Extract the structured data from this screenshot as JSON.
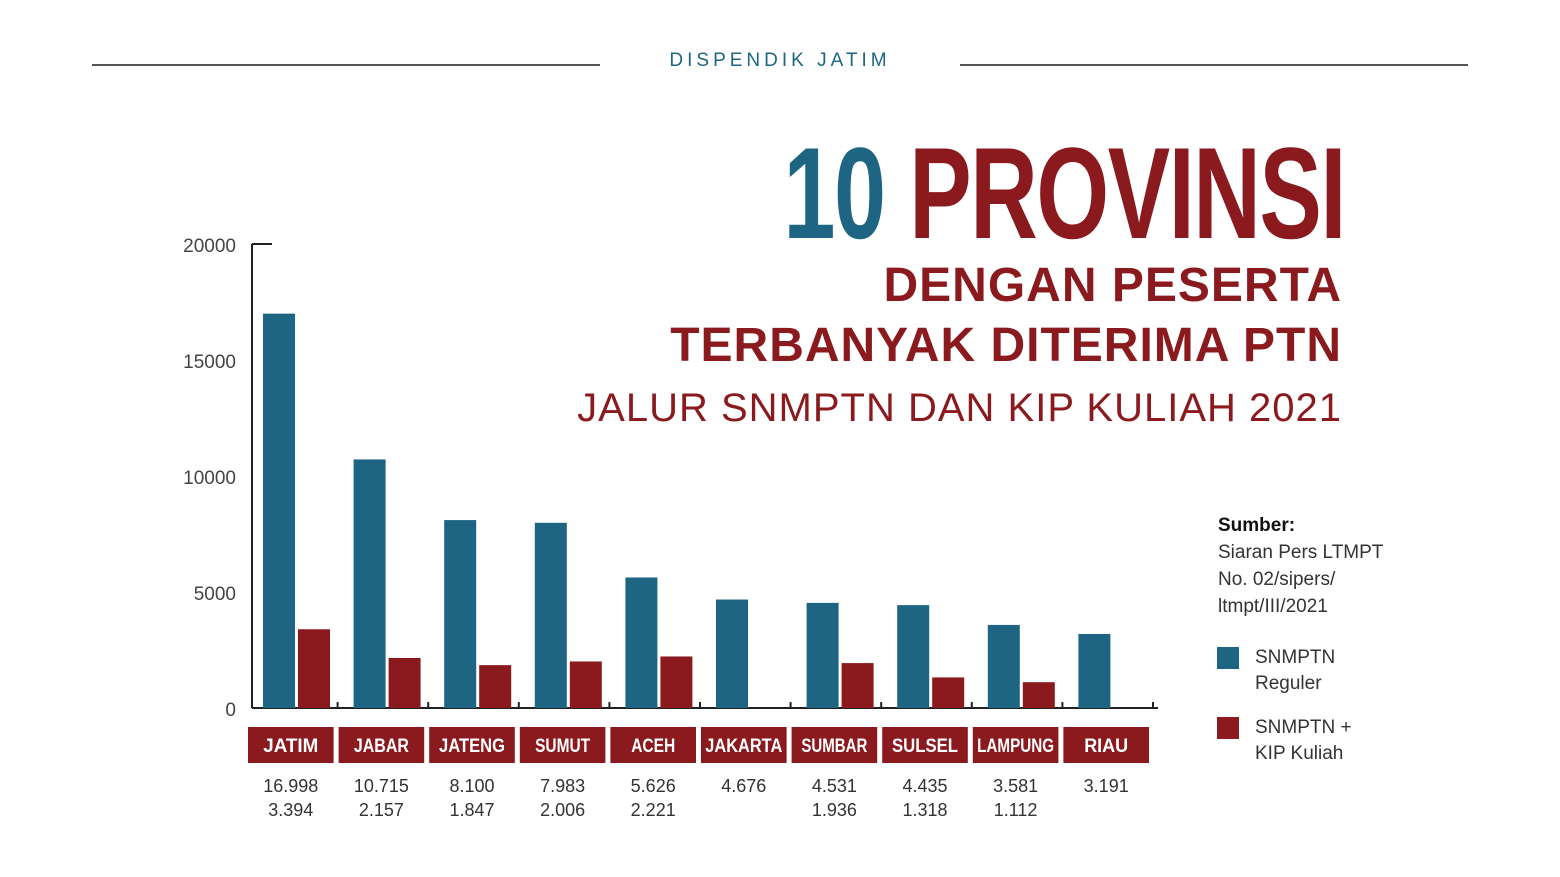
{
  "header": {
    "brand": "DISPENDIK JATIM"
  },
  "title": {
    "number": "10",
    "word": "PROVINSI",
    "line2": "DENGAN PESERTA",
    "line3": "TERBANYAK DITERIMA PTN",
    "line4": "JALUR SNMPTN DAN KIP KULIAH 2021"
  },
  "source": {
    "label": "Sumber:",
    "lines": [
      "Siaran Pers LTMPT",
      "No. 02/sipers/",
      "ltmpt/III/2021"
    ]
  },
  "colors": {
    "blue": "#1d6582",
    "red": "#8a1a1e"
  },
  "chart_data": {
    "type": "bar",
    "title": "10 PROVINSI DENGAN PESERTA TERBANYAK DITERIMA PTN JALUR SNMPTN DAN KIP KULIAH 2021",
    "categories": [
      "JATIM",
      "JABAR",
      "JATENG",
      "SUMUT",
      "ACEH",
      "JAKARTA",
      "SUMBAR",
      "SULSEL",
      "LAMPUNG",
      "RIAU"
    ],
    "series": [
      {
        "name": "SNMPTN Reguler",
        "color": "#1d6582",
        "values": [
          16998,
          10715,
          8100,
          7983,
          5626,
          4676,
          4531,
          4435,
          3581,
          3191
        ],
        "labels": [
          "16.998",
          "10.715",
          "8.100",
          "7.983",
          "5.626",
          "4.676",
          "4.531",
          "4.435",
          "3.581",
          "3.191"
        ]
      },
      {
        "name": "SNMPTN + KIP Kuliah",
        "color": "#8a1a1e",
        "values": [
          3394,
          2157,
          1847,
          2006,
          2221,
          null,
          1936,
          1318,
          1112,
          null
        ],
        "labels": [
          "3.394",
          "2.157",
          "1.847",
          "2.006",
          "2.221",
          "",
          "1.936",
          "1.318",
          "1.112",
          ""
        ]
      }
    ],
    "legend": [
      [
        "SNMPTN",
        "Reguler"
      ],
      [
        "SNMPTN +",
        "KIP Kuliah"
      ]
    ],
    "yticks": [
      0,
      5000,
      10000,
      15000,
      20000
    ],
    "ylim": [
      0,
      20000
    ],
    "grid": false,
    "legend_position": "right"
  }
}
